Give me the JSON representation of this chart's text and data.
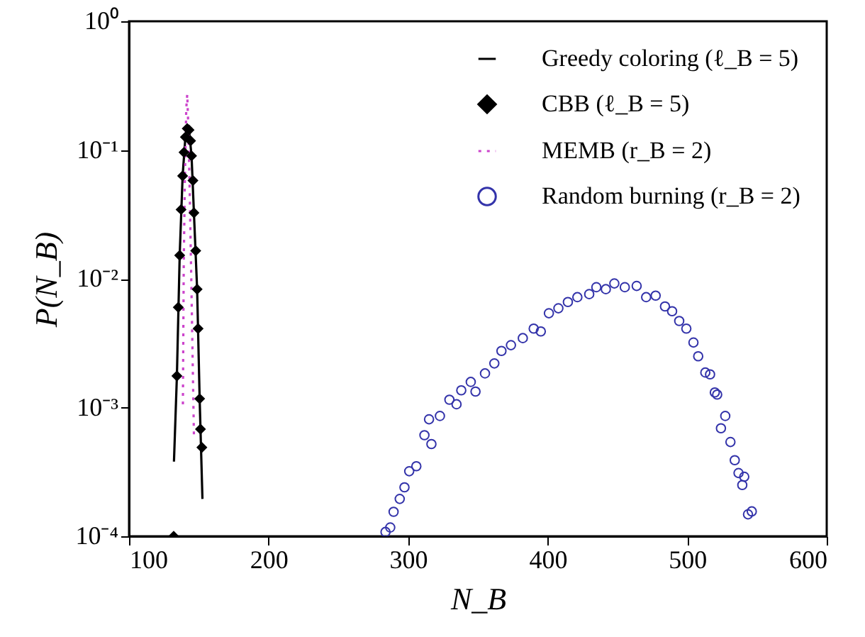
{
  "chart_data": {
    "type": "line",
    "xlabel": "N_B",
    "ylabel": "P(N_B)",
    "log": "y",
    "xlim": [
      100,
      600
    ],
    "xticks": [
      100,
      200,
      300,
      400,
      500,
      600
    ],
    "ylim": [
      0.0001,
      1
    ],
    "yticks": [
      {
        "value": 0.0001,
        "label": "10⁻⁴"
      },
      {
        "value": 0.001,
        "label": "10⁻³"
      },
      {
        "value": 0.01,
        "label": "10⁻²"
      },
      {
        "value": 0.1,
        "label": "10⁻¹"
      },
      {
        "value": 1,
        "label": "10⁰"
      }
    ],
    "grid": false,
    "legend": "top right",
    "series": [
      {
        "name": "Greedy coloring (ℓ_B = 5)",
        "line_style": "solid",
        "marker": "none",
        "color": "#000000",
        "x": [
          132.2,
          134.3,
          136.3,
          138.4,
          140.4,
          141.7,
          143.0,
          144.8,
          146.5,
          148.8,
          150.6,
          152.6
        ],
        "values": [
          0.00038,
          0.00176,
          0.0152,
          0.063,
          0.126,
          0.147,
          0.143,
          0.09,
          0.0325,
          0.0083,
          0.00117,
          0.000195
        ]
      },
      {
        "name": "CBB (ℓ_B = 5)",
        "type": "scatter",
        "marker": "diamond",
        "color": "#000000",
        "x": [
          132,
          134.3,
          135.3,
          136.3,
          137.3,
          138.4,
          139.4,
          140.4,
          141.7,
          143.0,
          144.1,
          144.8,
          145.8,
          146.5,
          147.8,
          148.8,
          149.5,
          150.6,
          151.2,
          152.2
        ],
        "values": [
          0.0001,
          0.00176,
          0.006,
          0.0152,
          0.0345,
          0.063,
          0.096,
          0.126,
          0.147,
          0.143,
          0.118,
          0.09,
          0.058,
          0.0325,
          0.0165,
          0.0083,
          0.0041,
          0.00117,
          0.00068,
          0.00049
        ]
      },
      {
        "name": "MEMB (r_B = 2)",
        "line_style": "dotted",
        "marker": "none",
        "color": "#cc44cc",
        "x": [
          138.6,
          139.2,
          140.0,
          141.0,
          141.7,
          142.4,
          143.3,
          144.6,
          146.5
        ],
        "values": [
          0.00106,
          0.0128,
          0.059,
          0.21,
          0.27,
          0.162,
          0.06,
          0.01,
          0.00061
        ]
      },
      {
        "name": "Random burning (r_B = 2)",
        "type": "scatter",
        "marker": "circle",
        "color": "#3333aa",
        "x": [
          283.8,
          287.2,
          289.6,
          294.0,
          297.4,
          300.8,
          305.9,
          311.7,
          316.7,
          315.0,
          322.8,
          329.6,
          334.7,
          338.1,
          344.9,
          348.3,
          355.1,
          361.8,
          366.9,
          373.7,
          382.2,
          390.0,
          395.1,
          400.9,
          407.7,
          414.5,
          421.3,
          429.8,
          434.9,
          441.7,
          447.8,
          455.3,
          463.8,
          470.6,
          477.4,
          484.1,
          489.2,
          494.3,
          499.4,
          504.5,
          507.9,
          513.0,
          516.4,
          519.8,
          521.5,
          524.2,
          527.3,
          531.0,
          534.1,
          536.8,
          539.5,
          540.9,
          543.6,
          546.3
        ],
        "values": [
          0.000108,
          0.000117,
          0.000155,
          0.000195,
          0.00024,
          0.00032,
          0.00035,
          0.00061,
          0.00052,
          0.00081,
          0.00086,
          0.00115,
          0.00106,
          0.00136,
          0.00158,
          0.00133,
          0.00184,
          0.0022,
          0.00275,
          0.00305,
          0.00346,
          0.0041,
          0.0039,
          0.0054,
          0.0059,
          0.0066,
          0.0072,
          0.0076,
          0.0086,
          0.0083,
          0.0092,
          0.0086,
          0.0088,
          0.0072,
          0.0074,
          0.0061,
          0.0056,
          0.0047,
          0.0041,
          0.0032,
          0.0025,
          0.00187,
          0.00181,
          0.00131,
          0.00126,
          0.00069,
          0.00086,
          0.00054,
          0.00039,
          0.00031,
          0.00025,
          0.00029,
          0.000148,
          0.000156
        ]
      }
    ]
  }
}
